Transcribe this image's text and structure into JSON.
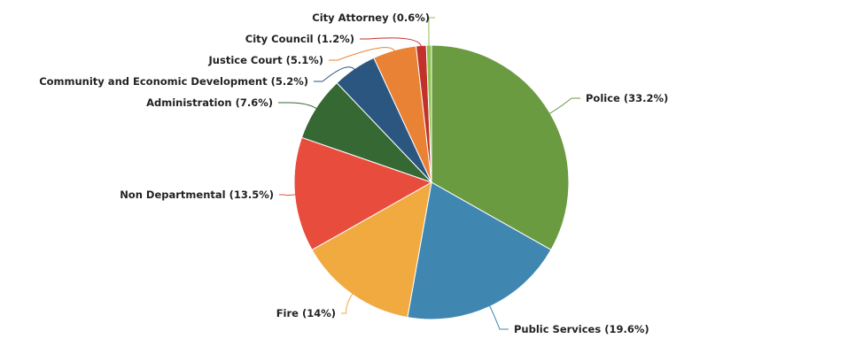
{
  "chart_data": {
    "type": "pie",
    "title": "",
    "slices": [
      {
        "name": "Police",
        "value": 33.2,
        "label": "Police (33.2%)",
        "color": "#6a9b41"
      },
      {
        "name": "Public Services",
        "value": 19.6,
        "label": "Public Services (19.6%)",
        "color": "#3f87b1"
      },
      {
        "name": "Fire",
        "value": 14,
        "label": "Fire (14%)",
        "color": "#f0aa40"
      },
      {
        "name": "Non Departmental",
        "value": 13.5,
        "label": "Non Departmental (13.5%)",
        "color": "#e84c3d"
      },
      {
        "name": "Administration",
        "value": 7.6,
        "label": "Administration (7.6%)",
        "color": "#356833"
      },
      {
        "name": "Community and Economic Development",
        "value": 5.2,
        "label": "Community and Economic Development (5.2%)",
        "color": "#2b5680"
      },
      {
        "name": "Justice Court",
        "value": 5.1,
        "label": "Justice Court (5.1%)",
        "color": "#e98234"
      },
      {
        "name": "City Council",
        "value": 1.2,
        "label": "City Council (1.2%)",
        "color": "#c0322a"
      },
      {
        "name": "City Attorney",
        "value": 0.6,
        "label": "City Attorney (0.6%)",
        "color": "#8ec153"
      }
    ]
  }
}
